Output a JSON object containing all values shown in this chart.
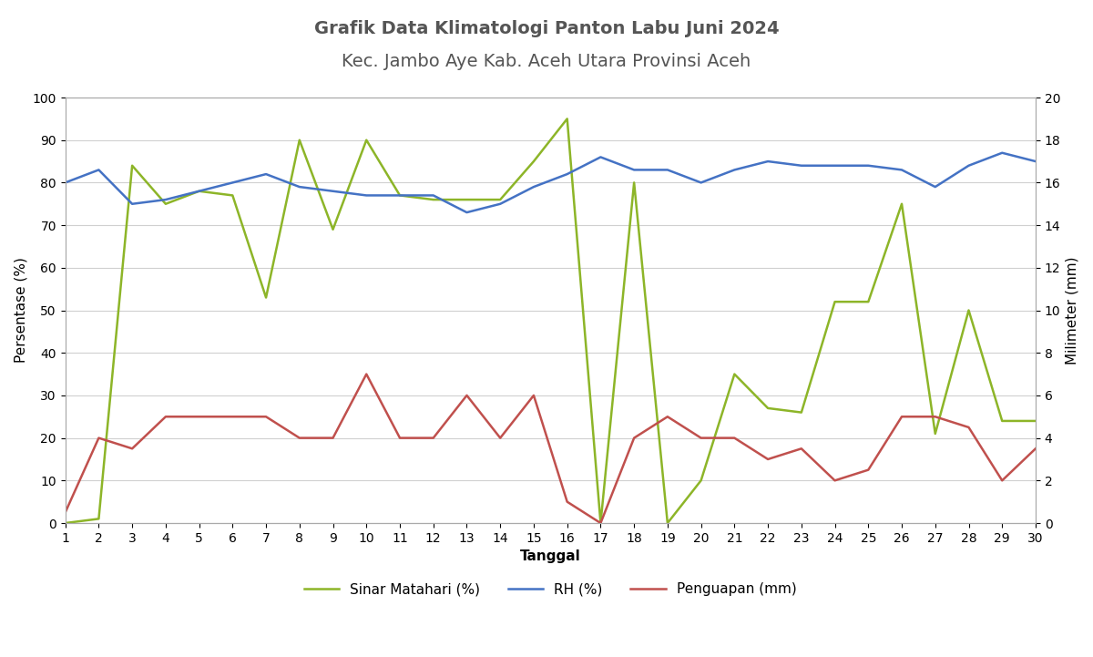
{
  "title_line1": "Grafik Data Klimatologi Panton Labu Juni 2024",
  "title_line2": "Kec. Jambo Aye Kab. Aceh Utara Provinsi Aceh",
  "xlabel": "Tanggal",
  "ylabel_left": "Persentase (%)",
  "ylabel_right": "Milimeter (mm)",
  "tanggal": [
    1,
    2,
    3,
    4,
    5,
    6,
    7,
    8,
    9,
    10,
    11,
    12,
    13,
    14,
    15,
    16,
    17,
    18,
    19,
    20,
    21,
    22,
    23,
    24,
    25,
    26,
    27,
    28,
    29,
    30
  ],
  "sinar_matahari": [
    0,
    1,
    84,
    75,
    78,
    77,
    53,
    90,
    69,
    90,
    77,
    76,
    76,
    76,
    85,
    95,
    0,
    80,
    0,
    10,
    35,
    27,
    26,
    52,
    52,
    75,
    21,
    50,
    24,
    24
  ],
  "rh": [
    80,
    83,
    75,
    76,
    78,
    80,
    82,
    79,
    78,
    77,
    77,
    77,
    73,
    75,
    79,
    82,
    86,
    83,
    83,
    80,
    83,
    85,
    84,
    84,
    84,
    83,
    79,
    84,
    87,
    85
  ],
  "penguapan": [
    0.5,
    4.0,
    3.5,
    5.0,
    5.0,
    5.0,
    5.0,
    4.0,
    4.0,
    7.0,
    4.0,
    4.0,
    6.0,
    4.0,
    6.0,
    1.0,
    0.0,
    4.0,
    5.0,
    4.0,
    4.0,
    3.0,
    3.5,
    2.0,
    2.5,
    5.0,
    5.0,
    4.5,
    2.0,
    3.5
  ],
  "color_sinar": "#8db528",
  "color_rh": "#4472c4",
  "color_penguapan": "#c0504d",
  "ylim_left": [
    0,
    100
  ],
  "ylim_right": [
    0,
    20
  ],
  "yticks_left": [
    0,
    10,
    20,
    30,
    40,
    50,
    60,
    70,
    80,
    90,
    100
  ],
  "yticks_right": [
    0,
    2,
    4,
    6,
    8,
    10,
    12,
    14,
    16,
    18,
    20
  ],
  "legend_labels": [
    "Sinar Matahari (%)",
    "RH (%)",
    "Penguapan (mm)"
  ],
  "bg_color": "#ffffff",
  "grid_color": "#d0d0d0",
  "title_fontsize": 14,
  "axis_fontsize": 11,
  "legend_fontsize": 11,
  "tick_fontsize": 10
}
